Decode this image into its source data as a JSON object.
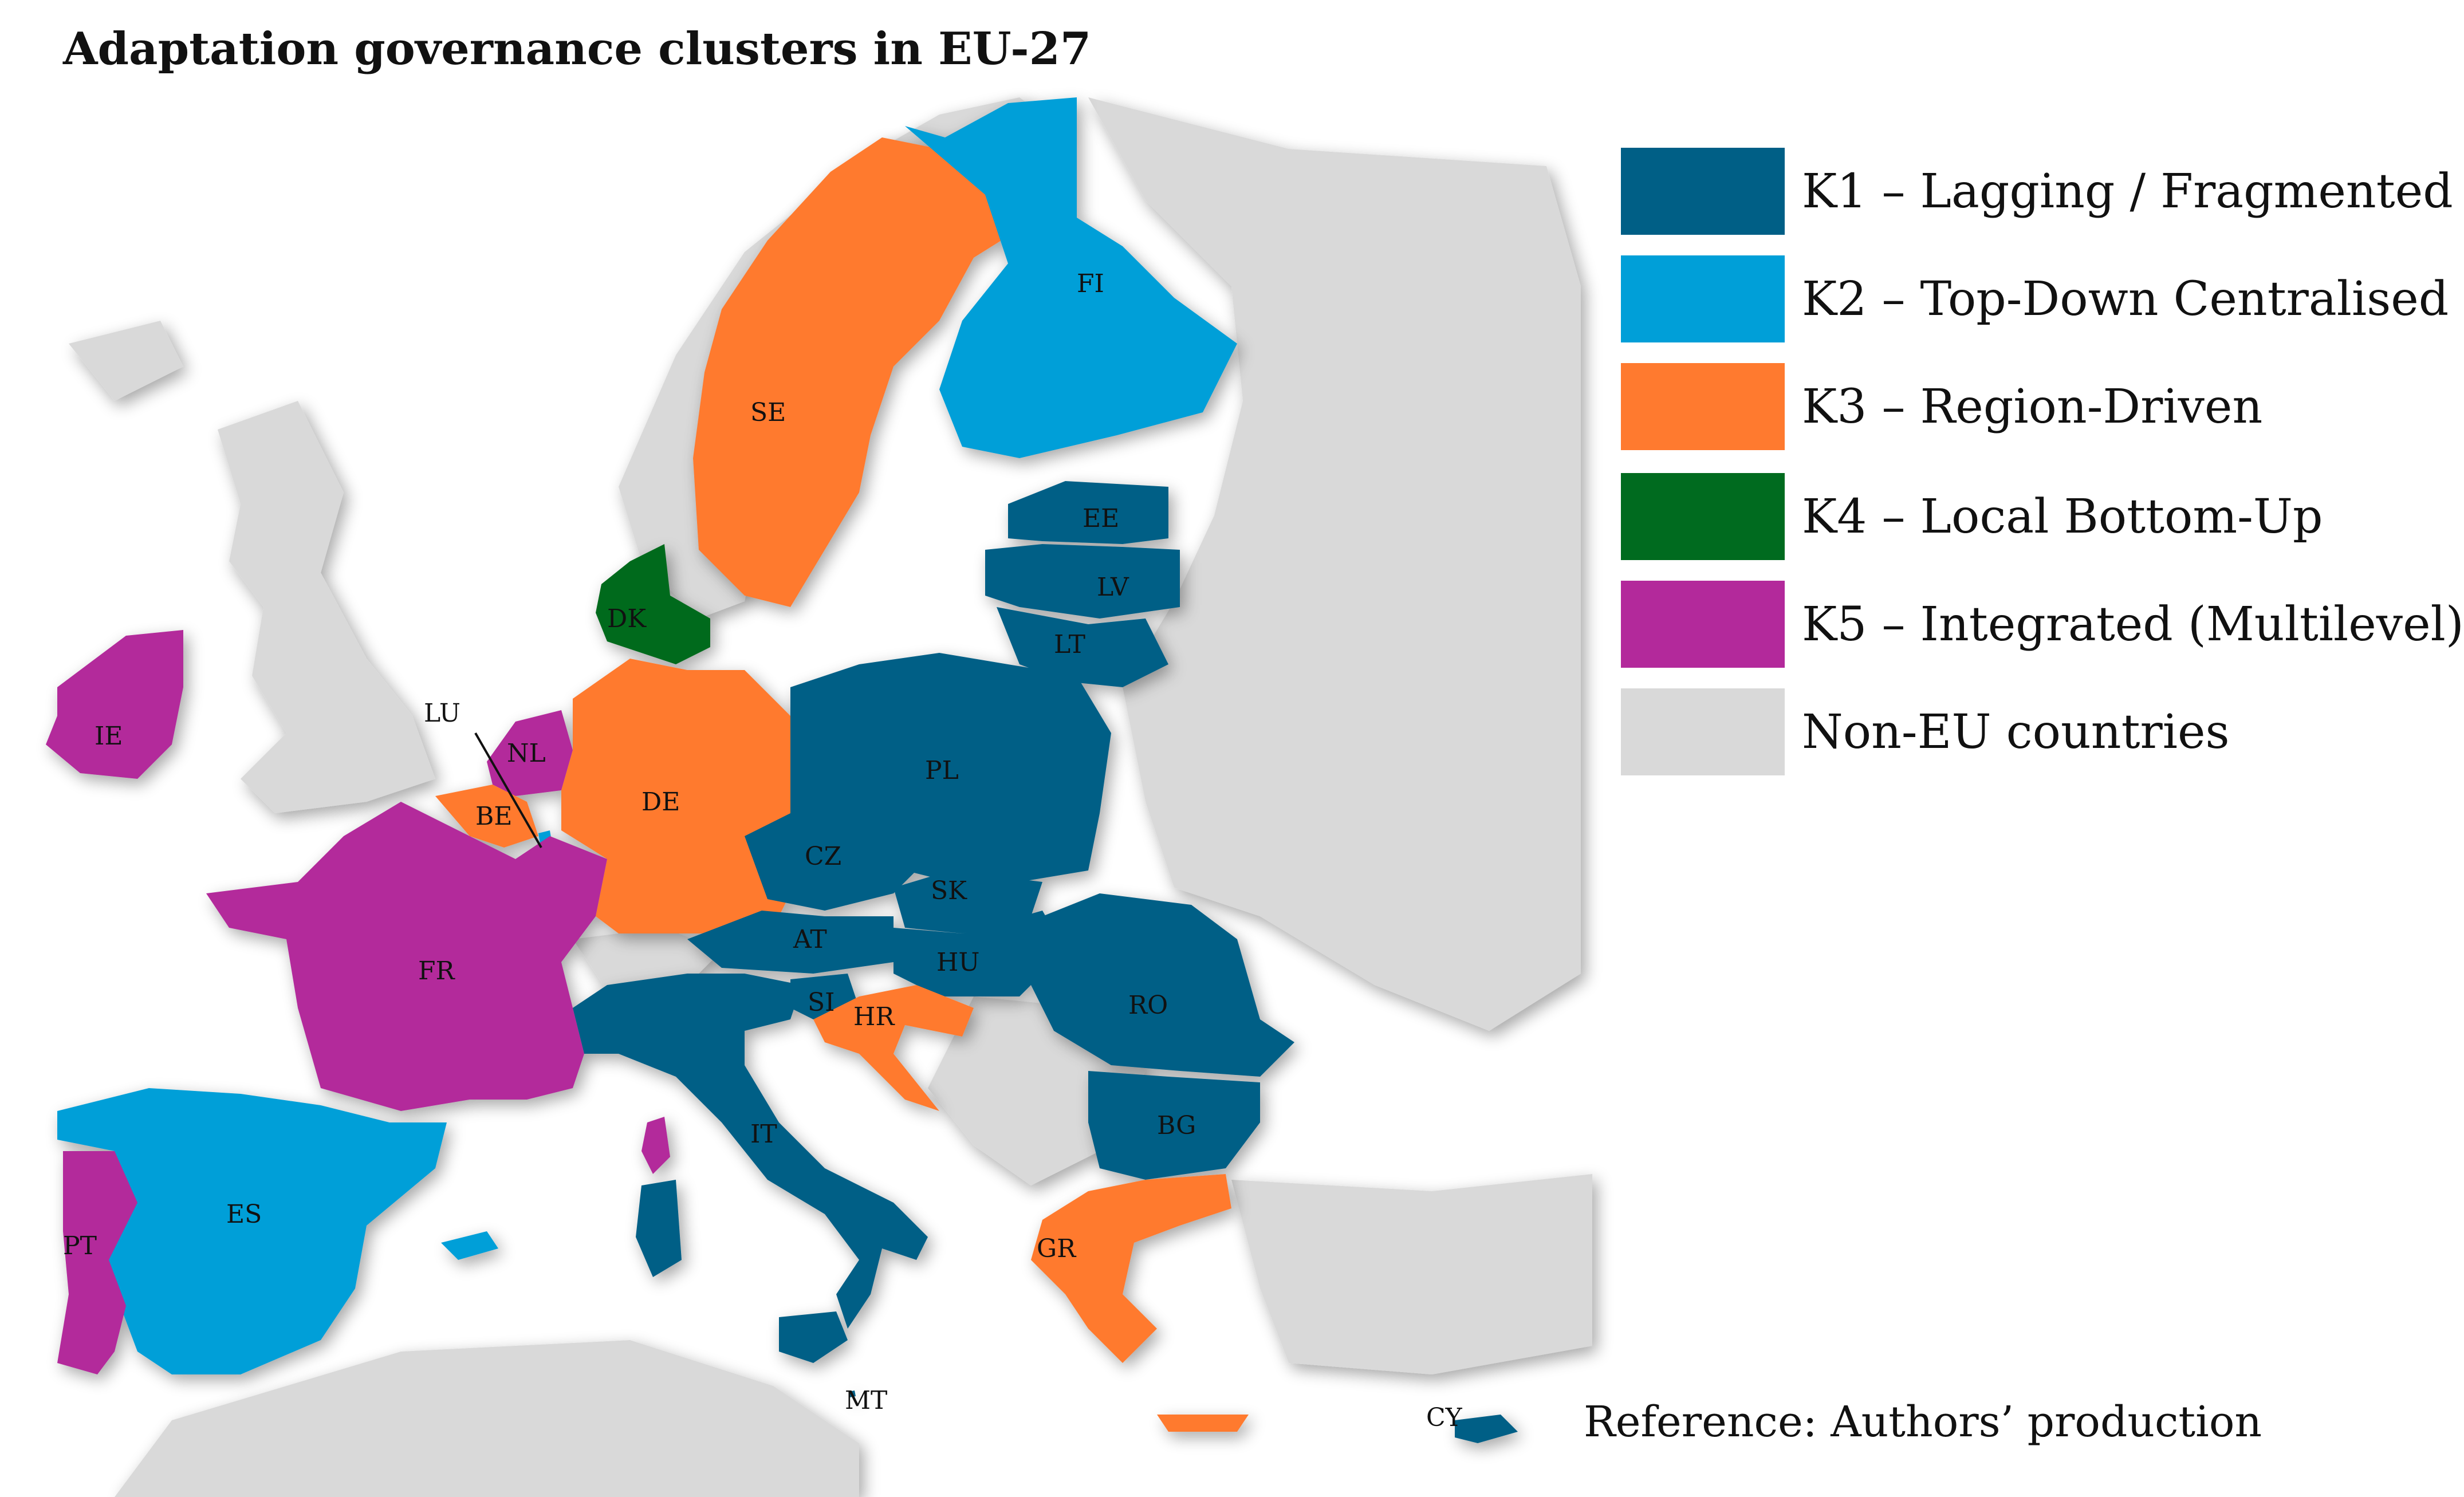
{
  "title": "Adaptation governance clusters in EU-27",
  "reference": "Reference: Authors’ production",
  "colors": {
    "K1": "#005f86",
    "K2": "#009fd8",
    "K3": "#ff7a2f",
    "K4": "#006b1f",
    "K5": "#b3299b",
    "non_eu": "#d9d9d9",
    "sea": "#ffffff"
  },
  "legend": [
    {
      "key": "K1",
      "label": "K1 – Lagging / Fragmented"
    },
    {
      "key": "K2",
      "label": "K2 – Top-Down Centralised"
    },
    {
      "key": "K3",
      "label": "K3 – Region-Driven"
    },
    {
      "key": "K4",
      "label": "K4 – Local Bottom-Up"
    },
    {
      "key": "K5",
      "label": "K5 – Integrated (Multilevel)"
    },
    {
      "key": "non_eu",
      "label": "Non-EU countries"
    }
  ],
  "countries": [
    {
      "code": "SE",
      "cluster": "K3"
    },
    {
      "code": "FI",
      "cluster": "K2"
    },
    {
      "code": "EE",
      "cluster": "K1"
    },
    {
      "code": "LV",
      "cluster": "K1"
    },
    {
      "code": "LT",
      "cluster": "K1"
    },
    {
      "code": "DK",
      "cluster": "K4"
    },
    {
      "code": "IE",
      "cluster": "K5"
    },
    {
      "code": "LU",
      "cluster": "K2"
    },
    {
      "code": "NL",
      "cluster": "K5"
    },
    {
      "code": "BE",
      "cluster": "K3"
    },
    {
      "code": "DE",
      "cluster": "K3"
    },
    {
      "code": "PL",
      "cluster": "K1"
    },
    {
      "code": "CZ",
      "cluster": "K1"
    },
    {
      "code": "SK",
      "cluster": "K1"
    },
    {
      "code": "AT",
      "cluster": "K1"
    },
    {
      "code": "HU",
      "cluster": "K1"
    },
    {
      "code": "SI",
      "cluster": "K1"
    },
    {
      "code": "HR",
      "cluster": "K3"
    },
    {
      "code": "RO",
      "cluster": "K1"
    },
    {
      "code": "BG",
      "cluster": "K1"
    },
    {
      "code": "FR",
      "cluster": "K5"
    },
    {
      "code": "IT",
      "cluster": "K1"
    },
    {
      "code": "ES",
      "cluster": "K2"
    },
    {
      "code": "PT",
      "cluster": "K5"
    },
    {
      "code": "GR",
      "cluster": "K3"
    },
    {
      "code": "MT",
      "cluster": "K1"
    },
    {
      "code": "CY",
      "cluster": "K1"
    }
  ]
}
